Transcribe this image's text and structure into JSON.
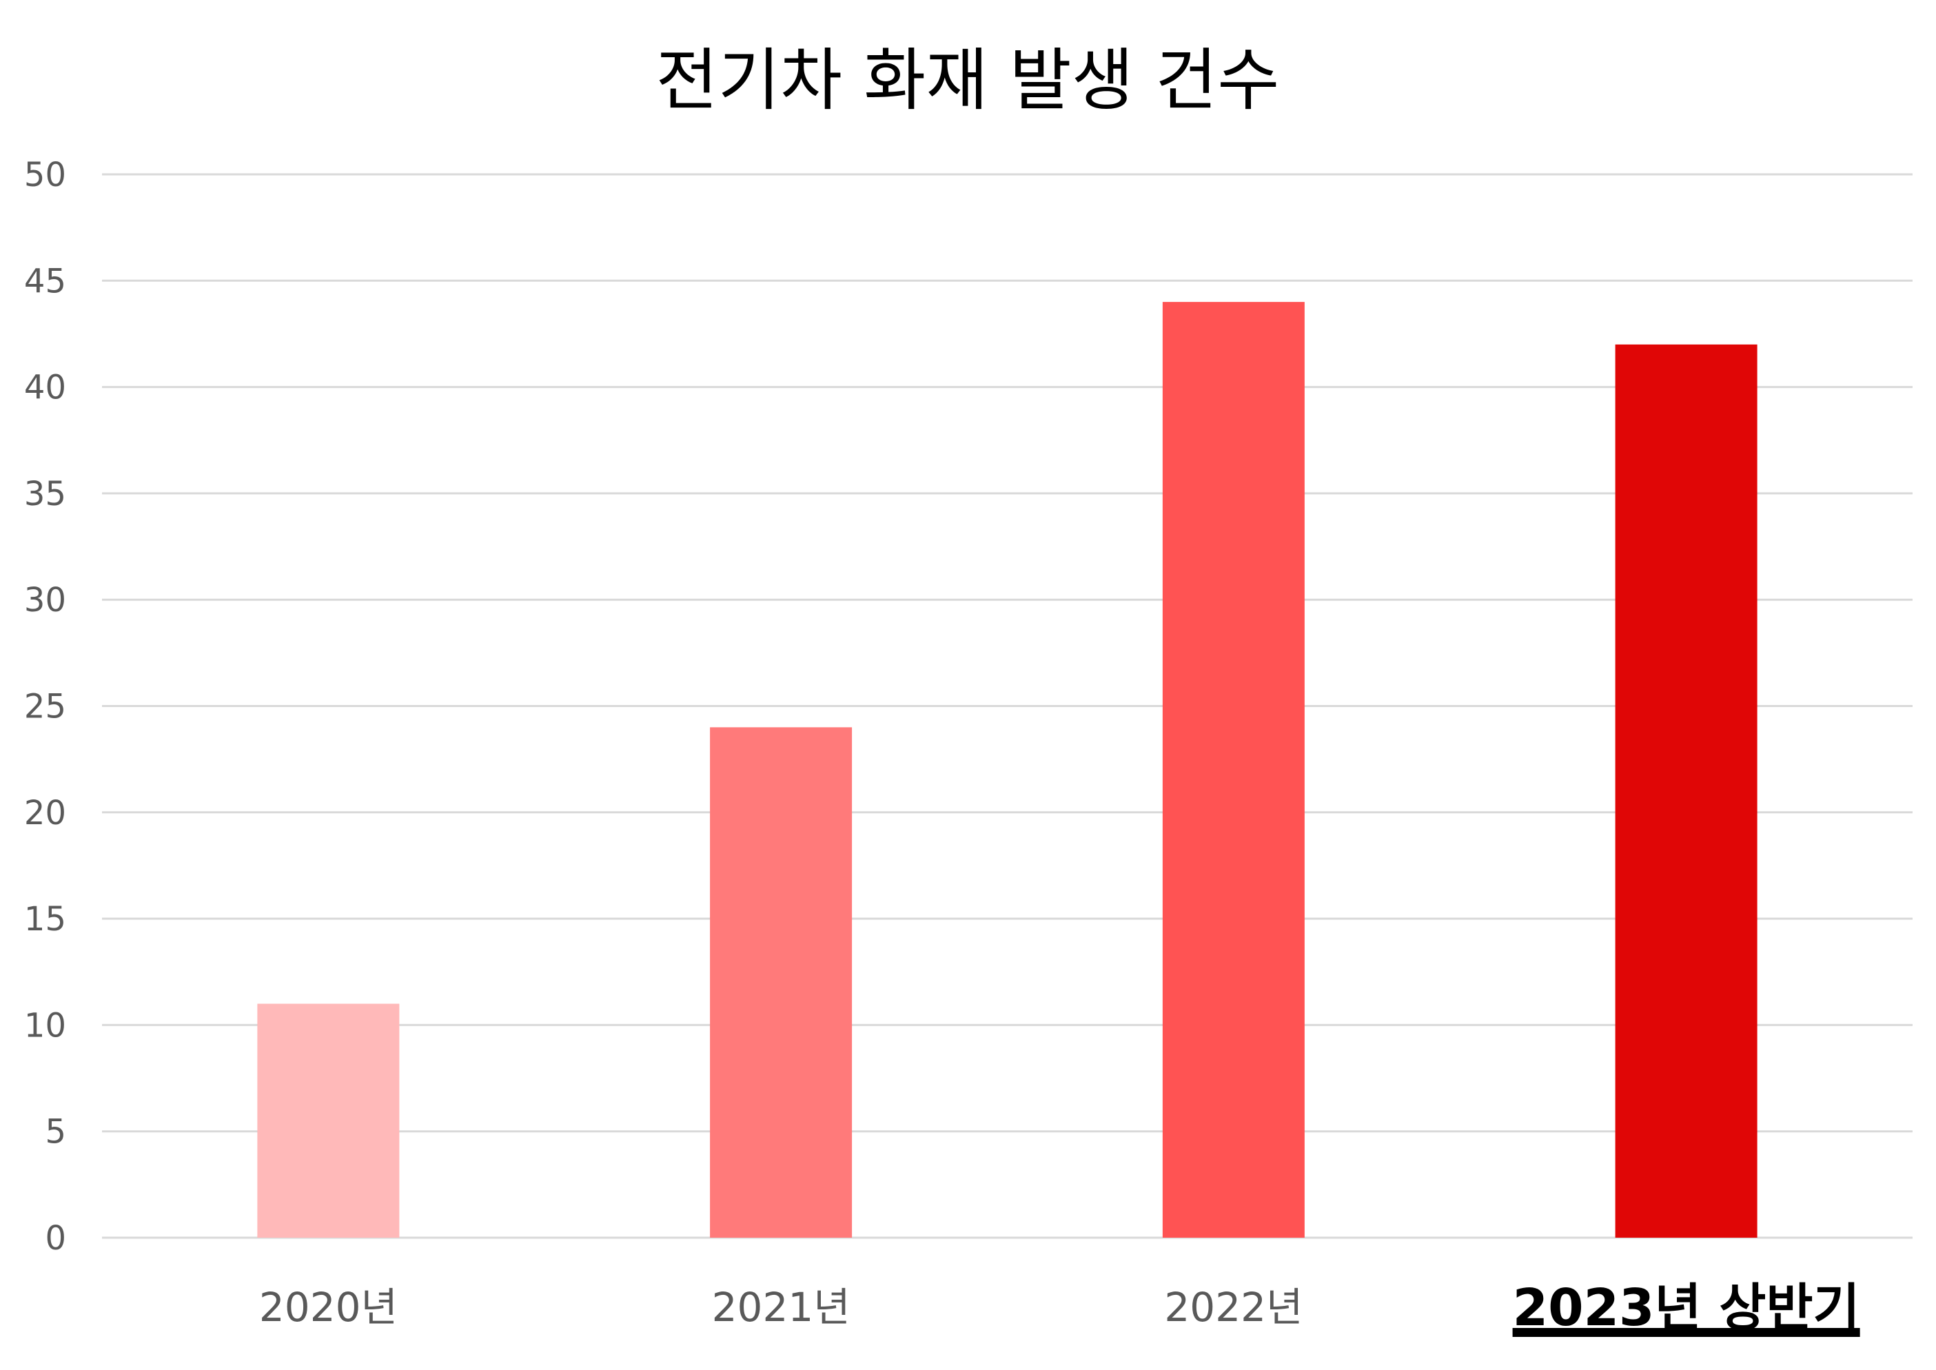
{
  "chart_data": {
    "type": "bar",
    "title": "전기차 화재 발생 건수",
    "xlabel": "",
    "ylabel": "",
    "categories": [
      "2020년",
      "2021년",
      "2022년",
      "2023년 상반기"
    ],
    "values": [
      11,
      24,
      44,
      42
    ],
    "bar_colors": [
      "#ffb9b9",
      "#ff7a7a",
      "#ff5353",
      "#e00606"
    ],
    "highlighted_category": "2023년 상반기",
    "ylim": [
      0,
      50
    ],
    "yticks": [
      0,
      5,
      10,
      15,
      20,
      25,
      30,
      35,
      40,
      45,
      50
    ],
    "grid": true,
    "legend": "none"
  }
}
